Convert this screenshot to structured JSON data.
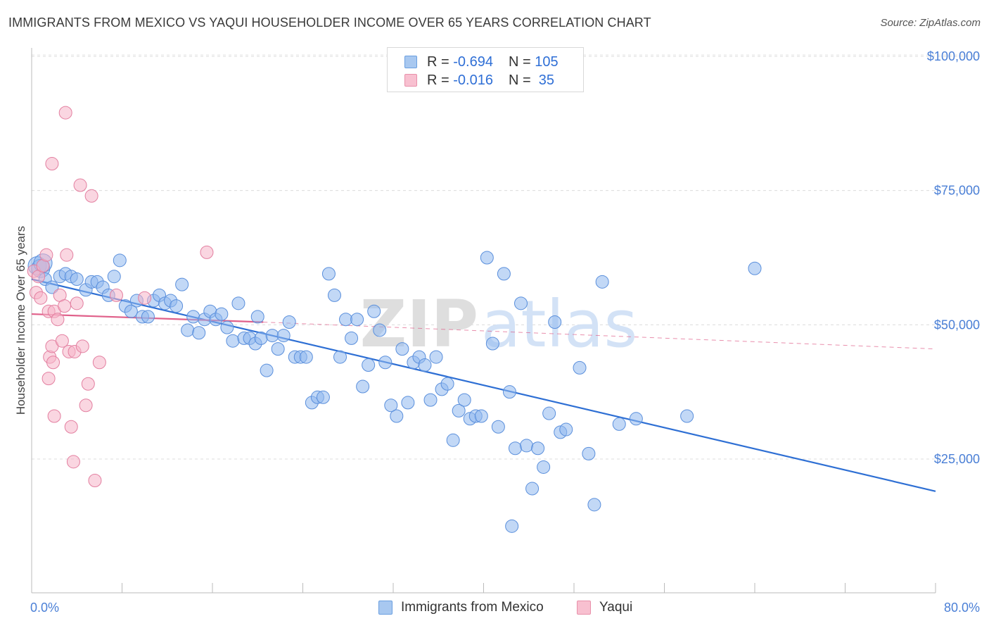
{
  "title": "IMMIGRANTS FROM MEXICO VS YAQUI HOUSEHOLDER INCOME OVER 65 YEARS CORRELATION CHART",
  "source": "Source: ZipAtlas.com",
  "watermark": {
    "part1": "ZIP",
    "part2": "atlas"
  },
  "legend_box": {
    "rows": [
      {
        "r_label": "R = ",
        "r_value": "-0.694",
        "n_label": "N = ",
        "n_value": "105",
        "color": "#a8c8f0",
        "border": "#6a9fe0"
      },
      {
        "r_label": "R = ",
        "r_value": "-0.016",
        "n_label": "N = ",
        "n_value": " 35",
        "color": "#f8c0d0",
        "border": "#e890aa"
      }
    ]
  },
  "bottom_legend": [
    {
      "label": "Immigrants from Mexico",
      "color": "#a8c8f0",
      "border": "#6a9fe0"
    },
    {
      "label": "Yaqui",
      "color": "#f8c0d0",
      "border": "#e890aa"
    }
  ],
  "chart_data": {
    "type": "scatter",
    "title": "IMMIGRANTS FROM MEXICO VS YAQUI HOUSEHOLDER INCOME OVER 65 YEARS CORRELATION CHART",
    "xlabel": "",
    "ylabel": "Householder Income Over 65 years",
    "xlim": [
      0,
      80
    ],
    "ylim": [
      0,
      105000
    ],
    "x_tick_labels": [
      "0.0%",
      "80.0%"
    ],
    "y_ticks": [
      25000,
      50000,
      75000,
      100000
    ],
    "y_tick_labels": [
      "$25,000",
      "$50,000",
      "$75,000",
      "$100,000"
    ],
    "series": [
      {
        "name": "Immigrants from Mexico",
        "color": "#8fb8ee",
        "stroke": "#5a8fdc",
        "trend": {
          "x": [
            0,
            80
          ],
          "y": [
            58500,
            19000
          ],
          "color": "#2e6fd4"
        },
        "points": [
          [
            0.5,
            61000
          ],
          [
            0.8,
            60500
          ],
          [
            1.0,
            61500
          ],
          [
            1.2,
            58500
          ],
          [
            1.8,
            57000
          ],
          [
            2.5,
            59000
          ],
          [
            3.0,
            59500
          ],
          [
            3.5,
            59000
          ],
          [
            4.0,
            58500
          ],
          [
            4.8,
            56500
          ],
          [
            5.3,
            58000
          ],
          [
            5.8,
            58000
          ],
          [
            6.3,
            57000
          ],
          [
            6.8,
            55500
          ],
          [
            7.3,
            59000
          ],
          [
            7.8,
            62000
          ],
          [
            8.3,
            53500
          ],
          [
            8.8,
            52500
          ],
          [
            9.3,
            54500
          ],
          [
            9.8,
            51500
          ],
          [
            10.3,
            51500
          ],
          [
            10.8,
            54500
          ],
          [
            11.3,
            55500
          ],
          [
            11.8,
            54000
          ],
          [
            12.3,
            54500
          ],
          [
            12.8,
            53500
          ],
          [
            13.3,
            57500
          ],
          [
            13.8,
            49000
          ],
          [
            14.3,
            51500
          ],
          [
            14.8,
            48500
          ],
          [
            15.3,
            51000
          ],
          [
            15.8,
            52500
          ],
          [
            16.3,
            51000
          ],
          [
            16.8,
            52000
          ],
          [
            17.3,
            49500
          ],
          [
            17.8,
            47000
          ],
          [
            18.3,
            54000
          ],
          [
            18.8,
            47500
          ],
          [
            19.3,
            47500
          ],
          [
            19.8,
            46500
          ],
          [
            20.3,
            47500
          ],
          [
            20.8,
            41500
          ],
          [
            21.3,
            48000
          ],
          [
            21.8,
            45500
          ],
          [
            22.3,
            48000
          ],
          [
            22.8,
            50500
          ],
          [
            23.3,
            44000
          ],
          [
            23.8,
            44000
          ],
          [
            24.3,
            44000
          ],
          [
            24.8,
            35500
          ],
          [
            25.3,
            36500
          ],
          [
            25.8,
            36500
          ],
          [
            26.3,
            59500
          ],
          [
            26.8,
            55500
          ],
          [
            27.3,
            44000
          ],
          [
            27.8,
            51000
          ],
          [
            28.3,
            47500
          ],
          [
            28.8,
            51000
          ],
          [
            29.3,
            38500
          ],
          [
            29.8,
            42500
          ],
          [
            30.3,
            52500
          ],
          [
            30.8,
            49000
          ],
          [
            31.3,
            43000
          ],
          [
            31.8,
            35000
          ],
          [
            32.3,
            33000
          ],
          [
            32.8,
            45500
          ],
          [
            33.3,
            35500
          ],
          [
            33.8,
            43000
          ],
          [
            34.3,
            44000
          ],
          [
            34.8,
            42500
          ],
          [
            35.3,
            36000
          ],
          [
            35.8,
            44000
          ],
          [
            36.3,
            38000
          ],
          [
            36.8,
            39000
          ],
          [
            37.3,
            28500
          ],
          [
            37.8,
            34000
          ],
          [
            38.3,
            36000
          ],
          [
            38.8,
            32500
          ],
          [
            39.3,
            33000
          ],
          [
            39.8,
            33000
          ],
          [
            40.3,
            62500
          ],
          [
            40.8,
            46500
          ],
          [
            41.3,
            31000
          ],
          [
            41.8,
            59500
          ],
          [
            42.3,
            37500
          ],
          [
            42.8,
            27000
          ],
          [
            43.3,
            54000
          ],
          [
            43.8,
            27500
          ],
          [
            44.3,
            19500
          ],
          [
            44.8,
            27000
          ],
          [
            45.3,
            23500
          ],
          [
            45.8,
            33500
          ],
          [
            46.3,
            50500
          ],
          [
            46.8,
            30000
          ],
          [
            47.3,
            30500
          ],
          [
            48.5,
            42000
          ],
          [
            49.3,
            26000
          ],
          [
            49.8,
            16500
          ],
          [
            50.5,
            58000
          ],
          [
            52.0,
            31500
          ],
          [
            53.5,
            32500
          ],
          [
            58.0,
            33000
          ],
          [
            64.0,
            60500
          ],
          [
            42.5,
            12500
          ],
          [
            20.0,
            51500
          ]
        ]
      },
      {
        "name": "Yaqui",
        "color": "#f5b4c8",
        "stroke": "#e37fa0",
        "trend": {
          "x": [
            0,
            20.5
          ],
          "y": [
            52000,
            50500
          ],
          "color": "#e0608a",
          "dashed_x": [
            20.5,
            80
          ],
          "dashed_y": [
            50500,
            45500
          ]
        },
        "points": [
          [
            0.2,
            60000
          ],
          [
            0.4,
            56000
          ],
          [
            0.6,
            59000
          ],
          [
            0.8,
            55000
          ],
          [
            1.0,
            61000
          ],
          [
            1.3,
            63000
          ],
          [
            1.5,
            52500
          ],
          [
            1.6,
            44000
          ],
          [
            1.8,
            46000
          ],
          [
            1.9,
            43000
          ],
          [
            2.0,
            52500
          ],
          [
            2.3,
            51000
          ],
          [
            2.5,
            55500
          ],
          [
            2.7,
            47000
          ],
          [
            2.9,
            53500
          ],
          [
            3.1,
            63000
          ],
          [
            3.3,
            45000
          ],
          [
            3.5,
            31000
          ],
          [
            3.7,
            24500
          ],
          [
            3.8,
            45000
          ],
          [
            4.0,
            54000
          ],
          [
            4.3,
            76000
          ],
          [
            4.5,
            46000
          ],
          [
            4.8,
            35000
          ],
          [
            5.0,
            39000
          ],
          [
            5.3,
            74000
          ],
          [
            5.6,
            21000
          ],
          [
            6.0,
            43000
          ],
          [
            7.5,
            55500
          ],
          [
            10.0,
            55000
          ],
          [
            3.0,
            89500
          ],
          [
            1.8,
            80000
          ],
          [
            15.5,
            63500
          ],
          [
            2.0,
            33000
          ],
          [
            1.5,
            40000
          ]
        ]
      }
    ]
  }
}
